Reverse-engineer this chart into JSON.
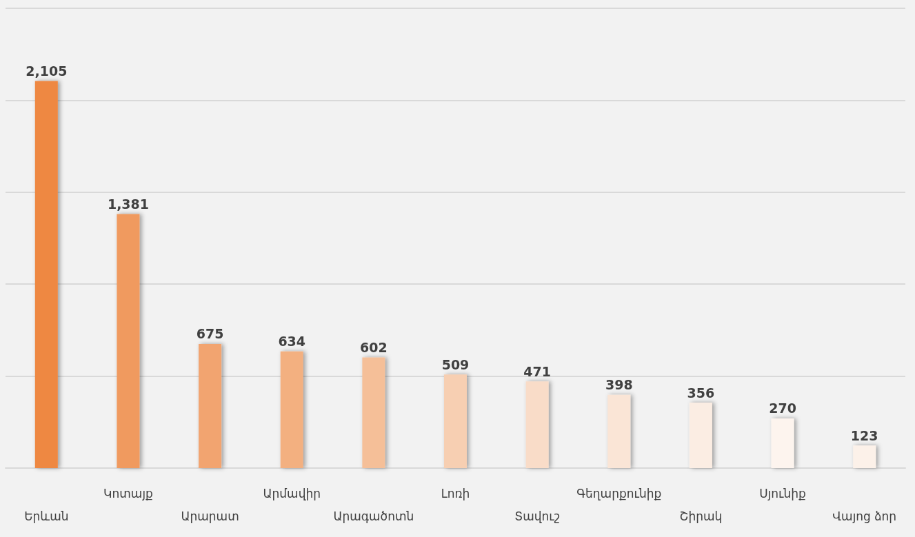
{
  "chart_data": {
    "type": "bar",
    "categories": [
      "Երևան",
      "Կոտայք",
      "Արարատ",
      "Արմավիր",
      "Արագածոտն",
      "Լոռի",
      "Տավուշ",
      "Գեղարքունիք",
      "Շիրակ",
      "Սյունիք",
      "Վայոց ձոր"
    ],
    "values": [
      2105,
      1381,
      675,
      634,
      602,
      509,
      471,
      398,
      356,
      270,
      123
    ],
    "value_labels": [
      "2,105",
      "1,381",
      "675",
      "634",
      "602",
      "509",
      "471",
      "398",
      "356",
      "270",
      "123"
    ],
    "colors": [
      "#ee8842",
      "#f09a5e",
      "#f2a470",
      "#f3b080",
      "#f5bf98",
      "#f7cfb2",
      "#f9dcc8",
      "#fae5d6",
      "#fbede3",
      "#fdf4ee",
      "#fcf1e9"
    ],
    "ylim": [
      0,
      2500
    ],
    "yticks": [
      {
        "value": 0,
        "label": null
      },
      {
        "value": 500,
        "label": null
      },
      {
        "value": 1000,
        "label": null
      },
      {
        "value": 1500,
        "label": null
      },
      {
        "value": 2000,
        "label": null
      },
      {
        "value": 2500,
        "label": null
      }
    ],
    "tick_labels": "x",
    "grid": "y"
  }
}
